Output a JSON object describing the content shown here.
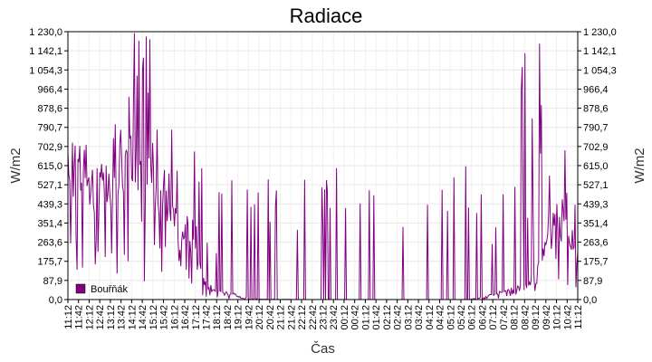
{
  "chart_data": {
    "type": "line",
    "title": "Radiace",
    "xlabel": "Čas",
    "ylabel": "W/m2",
    "ylabel_right": "W/m2",
    "ylim": [
      0,
      1230
    ],
    "grid": true,
    "legend_position": "bottom-left",
    "y_ticks": [
      "0,0",
      "87,9",
      "175,7",
      "263,6",
      "351,4",
      "439,3",
      "527,1",
      "615,0",
      "702,9",
      "790,7",
      "878,6",
      "966,4",
      "1 054,3",
      "1 142,1",
      "1 230,0"
    ],
    "y_tick_values": [
      0,
      87.9,
      175.7,
      263.6,
      351.4,
      439.3,
      527.1,
      615.0,
      702.9,
      790.7,
      878.6,
      966.4,
      1054.3,
      1142.1,
      1230.0
    ],
    "x_ticks": [
      "11:12",
      "11:42",
      "12:12",
      "12:42",
      "13:12",
      "13:42",
      "14:12",
      "14:42",
      "15:12",
      "15:42",
      "16:12",
      "16:42",
      "17:12",
      "17:42",
      "18:12",
      "18:42",
      "19:12",
      "19:42",
      "20:12",
      "20:42",
      "21:12",
      "21:42",
      "22:12",
      "22:42",
      "23:12",
      "23:42",
      "00:12",
      "00:42",
      "01:12",
      "01:42",
      "02:12",
      "02:42",
      "03:12",
      "03:42",
      "04:12",
      "04:42",
      "05:12",
      "05:42",
      "06:12",
      "06:42",
      "07:12",
      "07:42",
      "08:12",
      "08:42",
      "09:12",
      "09:42",
      "10:12",
      "10:42",
      "11:12"
    ],
    "series": [
      {
        "name": "Bouřňák",
        "color": "#800080",
        "x": [
          "11:12",
          "11:42",
          "12:12",
          "12:42",
          "13:12",
          "13:42",
          "14:12",
          "14:42",
          "15:12",
          "15:42",
          "16:12",
          "16:42",
          "17:12",
          "17:42",
          "18:12",
          "18:42",
          "19:12",
          "19:42",
          "20:12",
          "20:42",
          "21:12",
          "21:42",
          "22:12",
          "22:42",
          "23:12",
          "23:42",
          "00:12",
          "00:42",
          "01:12",
          "01:42",
          "02:12",
          "02:42",
          "03:12",
          "03:42",
          "04:12",
          "04:42",
          "05:12",
          "05:42",
          "06:12",
          "06:42",
          "07:12",
          "07:42",
          "08:12",
          "08:42",
          "09:12",
          "09:42",
          "10:12",
          "10:42",
          "11:12"
        ],
        "values": [
          560,
          600,
          520,
          540,
          600,
          650,
          620,
          560,
          500,
          450,
          380,
          330,
          250,
          60,
          45,
          35,
          20,
          8,
          3,
          2,
          1,
          1,
          0,
          0,
          0,
          0,
          0,
          0,
          0,
          0,
          0,
          0,
          0,
          0,
          0,
          0,
          0,
          0,
          5,
          10,
          25,
          40,
          45,
          60,
          90,
          300,
          400,
          350,
          200
        ],
        "peaks": [
          880,
          820,
          800,
          790,
          780,
          880,
          1230,
          1230,
          840,
          820,
          790,
          700,
          740,
          600,
          620,
          660,
          700,
          600,
          620,
          560,
          60,
          20,
          410,
          600,
          600,
          420,
          620,
          600,
          600,
          560,
          620,
          480,
          540,
          420,
          620,
          560,
          620,
          600,
          620,
          560,
          420,
          600,
          1200,
          1150,
          1230,
          880,
          700,
          660,
          400
        ]
      }
    ]
  }
}
